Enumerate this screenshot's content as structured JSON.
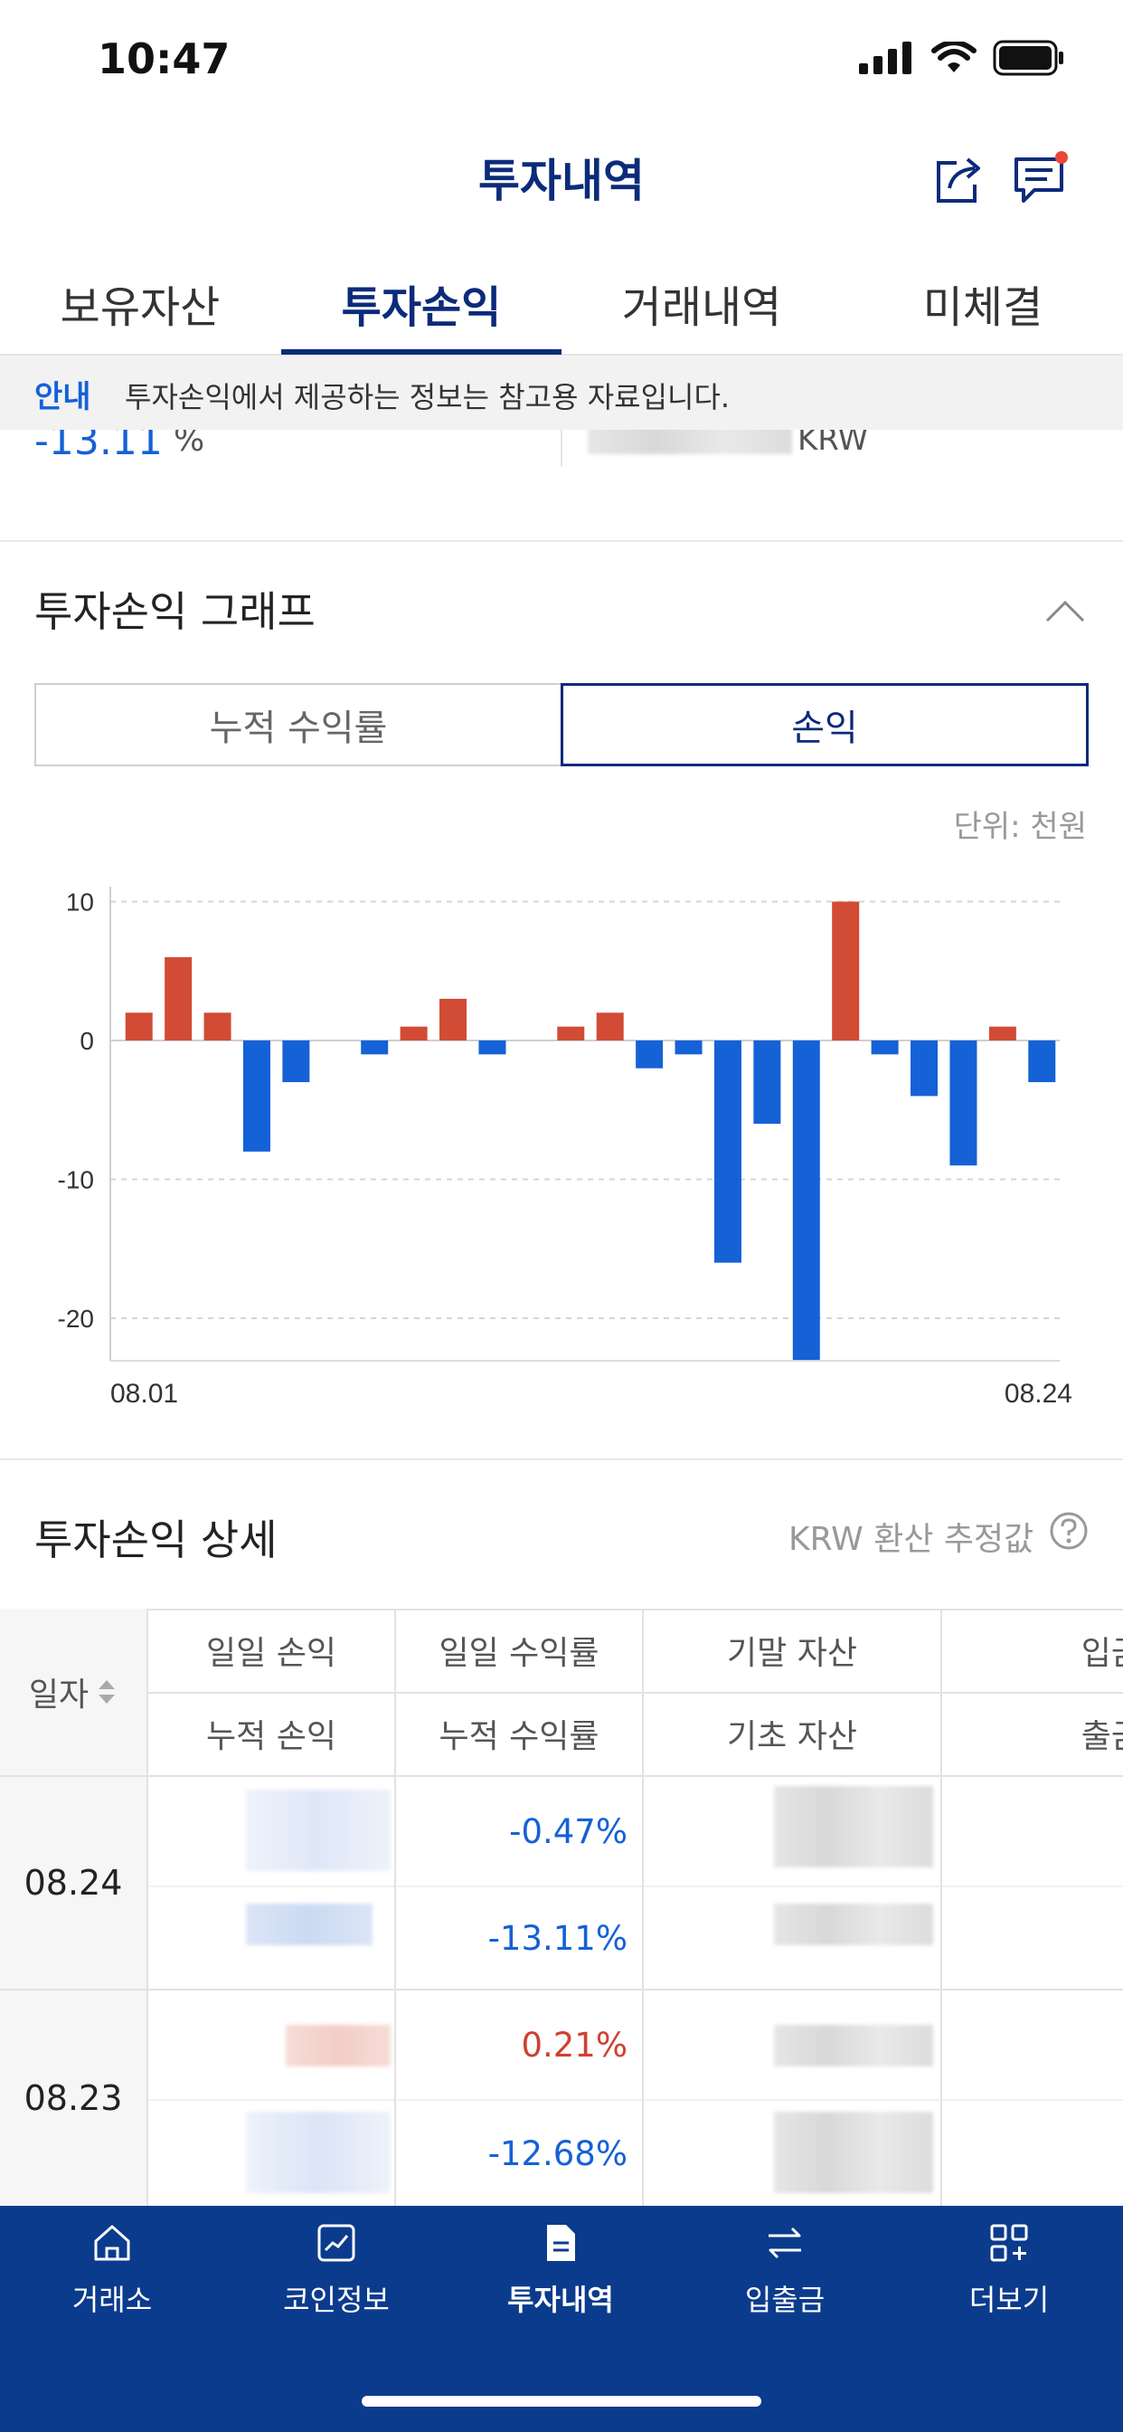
{
  "status": {
    "time": "10:47"
  },
  "header": {
    "title": "투자내역",
    "share_icon": "share-icon",
    "chat_icon": "chat-icon"
  },
  "tabs": [
    {
      "label": "보유자산"
    },
    {
      "label": "투자손익",
      "active": true
    },
    {
      "label": "거래내역"
    },
    {
      "label": "미체결"
    }
  ],
  "notice": {
    "tag": "안내",
    "text": "투자손익에서 제공하는 정보는 참고용 자료입니다."
  },
  "summary": {
    "rate": "-13.11",
    "rate_unit": "%",
    "currency": "KRW"
  },
  "graph": {
    "title": "투자손익 그래프",
    "toggle": {
      "left": "누적 수익률",
      "right": "손익",
      "selected": "손익"
    },
    "unit": "단위: 천원"
  },
  "chart_data": {
    "type": "bar",
    "x_start_label": "08.01",
    "x_end_label": "08.24",
    "y_ticks": [
      10,
      0,
      -10,
      -20
    ],
    "ylim": [
      -23,
      10
    ],
    "values": [
      2,
      6,
      2,
      -8,
      -3,
      0,
      -1,
      1,
      3,
      -1,
      0,
      1,
      2,
      -2,
      -1,
      -16,
      -6,
      -23,
      10,
      -1,
      -4,
      -9,
      1,
      -3
    ],
    "colors": {
      "positive": "#d14b35",
      "negative": "#1561d6"
    },
    "grid": "dashed horizontal"
  },
  "detail": {
    "title": "투자손익 상세",
    "note": "KRW 환산 추정값",
    "table": {
      "headers": {
        "date": "일자",
        "col1_top": "일일 손익",
        "col1_bottom": "누적 손익",
        "col2_top": "일일 수익률",
        "col2_bottom": "누적 수익률",
        "col3_top": "기말 자산",
        "col3_bottom": "기초 자산",
        "col4_top": "입금",
        "col4_bottom": "출금"
      },
      "rows": [
        {
          "date": "08.24",
          "daily_rate": "-0.47%",
          "cum_rate": "-13.11%"
        },
        {
          "date": "08.23",
          "daily_rate": "0.21%",
          "cum_rate": "-12.68%"
        }
      ]
    }
  },
  "nav": [
    {
      "label": "거래소",
      "icon": "home-icon"
    },
    {
      "label": "코인정보",
      "icon": "chart-icon"
    },
    {
      "label": "투자내역",
      "icon": "document-icon",
      "active": true
    },
    {
      "label": "입출금",
      "icon": "transfer-icon"
    },
    {
      "label": "더보기",
      "icon": "grid-plus-icon"
    }
  ]
}
